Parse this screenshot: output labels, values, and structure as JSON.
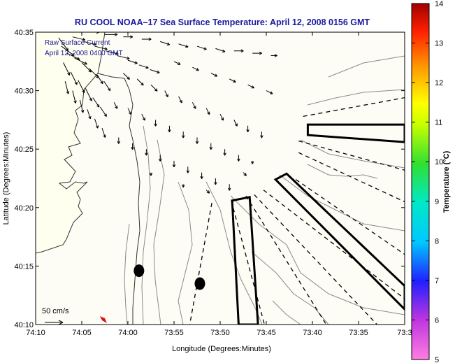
{
  "chart_data": {
    "type": "map",
    "title": "RU COOL  NOAA–17  Sea Surface Temperature:  April 12, 2008 0156 GMT",
    "xlabel": "Longitude (Degrees:Minutes)",
    "ylabel": "Latitude (Degrees:Minutes)",
    "x_ticks": [
      "74:10",
      "74:05",
      "74:00",
      "73:55",
      "73:50",
      "73:45",
      "73:40",
      "73:35",
      "73:3"
    ],
    "y_ticks": [
      "40:35",
      "40:30",
      "40:25",
      "40:20",
      "40:15",
      "40:10"
    ],
    "xlim_minutes_west": [
      70,
      30
    ],
    "ylim_minutes_north": [
      10,
      35
    ],
    "annotations": {
      "line1": "Raw Surface Current",
      "line2": "April 12, 2008 0400 GMT"
    },
    "scale_label": "50 cm/s",
    "colorbar": {
      "label": "Temperature (°C)",
      "ticks": [
        "14",
        "13",
        "12",
        "11",
        "10",
        "9",
        "8",
        "7",
        "6",
        "5"
      ],
      "min": 5,
      "max": 14
    },
    "features": {
      "dots": [
        {
          "lon_min_w": 58.8,
          "lat_min_n": 14.6
        },
        {
          "lon_min_w": 52.2,
          "lat_min_n": 13.5
        }
      ],
      "boxes": [
        {
          "name": "east-box",
          "corners": [
            [
              40.5,
              27.1
            ],
            [
              30.0,
              27.1
            ],
            [
              30.0,
              25.6
            ],
            [
              40.5,
              26.2
            ]
          ]
        },
        {
          "name": "diagonal-box",
          "corners": [
            [
              42.8,
              22.9
            ],
            [
              30.0,
              13.3
            ],
            [
              30.0,
              11.3
            ],
            [
              44.0,
              22.4
            ]
          ]
        },
        {
          "name": "vertical-box",
          "corners": [
            [
              48.7,
              20.6
            ],
            [
              46.8,
              20.9
            ],
            [
              45.9,
              10.0
            ],
            [
              48.0,
              10.0
            ]
          ]
        }
      ],
      "dashed_lines": [
        [
          [
            41.0,
            27.8
          ],
          [
            30.0,
            29.4
          ]
        ],
        [
          [
            41.5,
            25.7
          ],
          [
            30.0,
            23.2
          ]
        ],
        [
          [
            41.5,
            24.7
          ],
          [
            30.0,
            20.5
          ]
        ],
        [
          [
            41.8,
            22.4
          ],
          [
            30.0,
            16.0
          ]
        ],
        [
          [
            45.3,
            21.5
          ],
          [
            30.0,
            12.2
          ]
        ],
        [
          [
            46.3,
            21.1
          ],
          [
            33.0,
            10.0
          ]
        ],
        [
          [
            47.2,
            21.0
          ],
          [
            38.5,
            10.0
          ]
        ],
        [
          [
            48.8,
            20.6
          ],
          [
            45.2,
            10.0
          ]
        ],
        [
          [
            50.9,
            20.4
          ],
          [
            53.3,
            10.0
          ]
        ]
      ]
    },
    "current_vectors": [
      {
        "lon": 67.5,
        "lat": 34.5,
        "u": 3,
        "v": -4
      },
      {
        "lon": 67.2,
        "lat": 33.8,
        "u": 4,
        "v": -3
      },
      {
        "lon": 66.6,
        "lat": 33.2,
        "u": 4,
        "v": -2
      },
      {
        "lon": 65.8,
        "lat": 32.8,
        "u": 4,
        "v": -2
      },
      {
        "lon": 65.0,
        "lat": 32.4,
        "u": 3,
        "v": -3
      },
      {
        "lon": 64.2,
        "lat": 31.9,
        "u": 3,
        "v": -3
      },
      {
        "lon": 63.4,
        "lat": 31.4,
        "u": 2,
        "v": -3
      },
      {
        "lon": 62.6,
        "lat": 30.8,
        "u": 2,
        "v": -3
      },
      {
        "lon": 67.0,
        "lat": 32.4,
        "u": 2,
        "v": -4
      },
      {
        "lon": 66.2,
        "lat": 31.6,
        "u": 2,
        "v": -4
      },
      {
        "lon": 65.4,
        "lat": 30.9,
        "u": 2,
        "v": -4
      },
      {
        "lon": 64.6,
        "lat": 30.2,
        "u": 2,
        "v": -4
      },
      {
        "lon": 63.8,
        "lat": 29.4,
        "u": 2,
        "v": -3
      },
      {
        "lon": 63.0,
        "lat": 28.6,
        "u": 2,
        "v": -3
      },
      {
        "lon": 66.8,
        "lat": 30.8,
        "u": 1,
        "v": -4
      },
      {
        "lon": 66.0,
        "lat": 30.0,
        "u": 1,
        "v": -4
      },
      {
        "lon": 65.2,
        "lat": 29.2,
        "u": 1,
        "v": -4
      },
      {
        "lon": 64.4,
        "lat": 28.4,
        "u": 1,
        "v": -3
      },
      {
        "lon": 63.6,
        "lat": 27.6,
        "u": 1,
        "v": -3
      },
      {
        "lon": 62.8,
        "lat": 26.8,
        "u": 1,
        "v": -3
      },
      {
        "lon": 66.0,
        "lat": 34.6,
        "u": 4,
        "v": -1
      },
      {
        "lon": 64.8,
        "lat": 34.2,
        "u": 4,
        "v": -1
      },
      {
        "lon": 63.6,
        "lat": 33.8,
        "u": 4,
        "v": -1
      },
      {
        "lon": 62.4,
        "lat": 33.4,
        "u": 4,
        "v": -1
      },
      {
        "lon": 61.2,
        "lat": 33.0,
        "u": 4,
        "v": -1
      },
      {
        "lon": 60.0,
        "lat": 32.6,
        "u": 3,
        "v": -1
      },
      {
        "lon": 58.8,
        "lat": 32.2,
        "u": 3,
        "v": -1
      },
      {
        "lon": 57.6,
        "lat": 31.8,
        "u": 3,
        "v": -1
      },
      {
        "lon": 64.5,
        "lat": 35.0,
        "u": 4,
        "v": 0
      },
      {
        "lon": 62.5,
        "lat": 34.8,
        "u": 4,
        "v": 0
      },
      {
        "lon": 60.5,
        "lat": 34.6,
        "u": 3,
        "v": 0
      },
      {
        "lon": 58.5,
        "lat": 34.4,
        "u": 3,
        "v": 0
      },
      {
        "lon": 56.5,
        "lat": 34.2,
        "u": 3,
        "v": -1
      },
      {
        "lon": 54.5,
        "lat": 34.0,
        "u": 3,
        "v": -1
      },
      {
        "lon": 52.5,
        "lat": 33.8,
        "u": 3,
        "v": -1
      },
      {
        "lon": 50.5,
        "lat": 33.6,
        "u": 3,
        "v": -1
      },
      {
        "lon": 48.5,
        "lat": 33.4,
        "u": 3,
        "v": 0
      },
      {
        "lon": 46.5,
        "lat": 33.2,
        "u": 3,
        "v": 0
      },
      {
        "lon": 44.5,
        "lat": 33.0,
        "u": 2,
        "v": 0
      },
      {
        "lon": 60.5,
        "lat": 31.5,
        "u": 2,
        "v": -2
      },
      {
        "lon": 59.0,
        "lat": 31.0,
        "u": 2,
        "v": -2
      },
      {
        "lon": 57.5,
        "lat": 30.5,
        "u": 2,
        "v": -2
      },
      {
        "lon": 56.0,
        "lat": 30.0,
        "u": 1,
        "v": -2
      },
      {
        "lon": 54.5,
        "lat": 29.5,
        "u": 1,
        "v": -2
      },
      {
        "lon": 53.0,
        "lat": 29.0,
        "u": 1,
        "v": -2
      },
      {
        "lon": 51.5,
        "lat": 28.5,
        "u": 1,
        "v": -2
      },
      {
        "lon": 50.0,
        "lat": 28.0,
        "u": 1,
        "v": -2
      },
      {
        "lon": 48.5,
        "lat": 27.5,
        "u": 1,
        "v": -2
      },
      {
        "lon": 47.0,
        "lat": 27.0,
        "u": 0,
        "v": -2
      },
      {
        "lon": 45.5,
        "lat": 26.5,
        "u": 0,
        "v": -2
      },
      {
        "lon": 55.0,
        "lat": 32.5,
        "u": 2,
        "v": -1
      },
      {
        "lon": 53.0,
        "lat": 32.0,
        "u": 2,
        "v": -1
      },
      {
        "lon": 51.0,
        "lat": 31.5,
        "u": 2,
        "v": -1
      },
      {
        "lon": 49.0,
        "lat": 31.0,
        "u": 2,
        "v": -1
      },
      {
        "lon": 47.0,
        "lat": 30.5,
        "u": 2,
        "v": -1
      },
      {
        "lon": 45.0,
        "lat": 30.0,
        "u": 2,
        "v": -1
      },
      {
        "lon": 61.5,
        "lat": 29.0,
        "u": 1,
        "v": -2
      },
      {
        "lon": 60.0,
        "lat": 28.5,
        "u": 1,
        "v": -2
      },
      {
        "lon": 58.5,
        "lat": 28.0,
        "u": 1,
        "v": -2
      },
      {
        "lon": 57.0,
        "lat": 27.5,
        "u": 0,
        "v": -2
      },
      {
        "lon": 55.5,
        "lat": 27.0,
        "u": 0,
        "v": -2
      },
      {
        "lon": 54.0,
        "lat": 26.5,
        "u": 0,
        "v": -2
      },
      {
        "lon": 52.5,
        "lat": 26.0,
        "u": 0,
        "v": -2
      },
      {
        "lon": 51.0,
        "lat": 25.5,
        "u": 0,
        "v": -2
      },
      {
        "lon": 49.5,
        "lat": 25.0,
        "u": 0,
        "v": -2
      },
      {
        "lon": 48.0,
        "lat": 24.5,
        "u": 0,
        "v": -2
      },
      {
        "lon": 46.5,
        "lat": 24.0,
        "u": 0,
        "v": -1
      },
      {
        "lon": 61.0,
        "lat": 26.0,
        "u": 0,
        "v": -2
      },
      {
        "lon": 59.5,
        "lat": 25.5,
        "u": 0,
        "v": -2
      },
      {
        "lon": 58.0,
        "lat": 25.0,
        "u": 0,
        "v": -2
      },
      {
        "lon": 56.5,
        "lat": 24.5,
        "u": 0,
        "v": -2
      },
      {
        "lon": 55.0,
        "lat": 24.0,
        "u": 0,
        "v": -2
      },
      {
        "lon": 53.5,
        "lat": 23.5,
        "u": 0,
        "v": -2
      },
      {
        "lon": 52.0,
        "lat": 23.0,
        "u": 0,
        "v": -2
      },
      {
        "lon": 50.5,
        "lat": 22.5,
        "u": 0,
        "v": -2
      },
      {
        "lon": 49.0,
        "lat": 22.0,
        "u": 0,
        "v": -2
      },
      {
        "lon": 47.5,
        "lat": 23.0,
        "u": 1,
        "v": -1
      },
      {
        "lon": 57.5,
        "lat": 23.0,
        "u": 0,
        "v": -1
      },
      {
        "lon": 54.0,
        "lat": 22.0,
        "u": 0,
        "v": -1
      },
      {
        "lon": 51.5,
        "lat": 21.5,
        "u": 1,
        "v": -1
      }
    ]
  }
}
